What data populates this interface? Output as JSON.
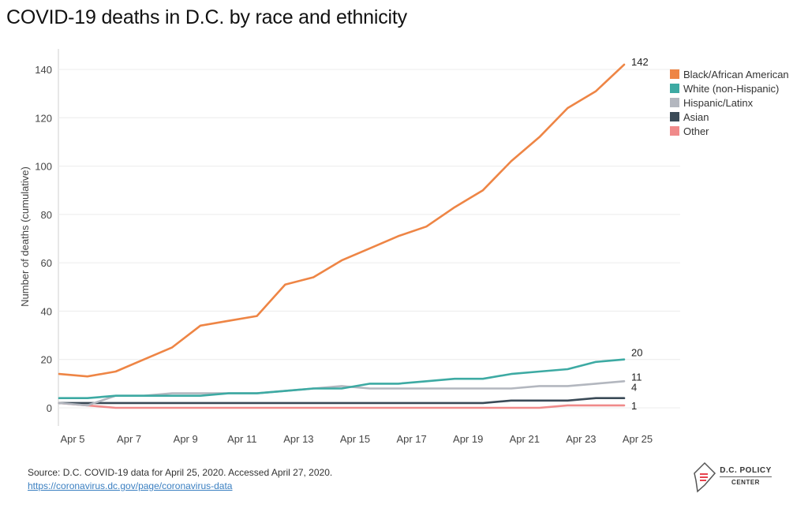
{
  "header": {
    "title": "COVID-19 deaths in D.C. by race and ethnicity"
  },
  "footer": {
    "source": "Source: D.C. COVID-19 data for April 25, 2020. Accessed April 27, 2020.",
    "link": "https://coronavirus.dc.gov/page/coronavirus-data"
  },
  "logo": {
    "name": "D.C. POLICY",
    "sub": "CENTER",
    "icon": "dc-map-icon"
  },
  "chart_data": {
    "type": "line",
    "title": "COVID-19 deaths in D.C. by race and ethnicity",
    "xlabel": "",
    "ylabel": "Number of deaths (cumulative)",
    "ylim": [
      -5,
      145
    ],
    "yticks": [
      0,
      20,
      40,
      60,
      80,
      100,
      120,
      140
    ],
    "grid": true,
    "legend": "top-right",
    "x": [
      "Apr 5",
      "Apr 6",
      "Apr 7",
      "Apr 8",
      "Apr 9",
      "Apr 10",
      "Apr 11",
      "Apr 12",
      "Apr 13",
      "Apr 14",
      "Apr 15",
      "Apr 16",
      "Apr 17",
      "Apr 18",
      "Apr 19",
      "Apr 20",
      "Apr 21",
      "Apr 22",
      "Apr 23",
      "Apr 24",
      "Apr 25"
    ],
    "xtick_labels": [
      "Apr 5",
      "Apr 7",
      "Apr 9",
      "Apr 11",
      "Apr 13",
      "Apr 15",
      "Apr 17",
      "Apr 19",
      "Apr 21",
      "Apr 23",
      "Apr 25"
    ],
    "series": [
      {
        "name": "Black/African American",
        "color": "#ee8545",
        "end_label": "142",
        "values": [
          14,
          13,
          15,
          20,
          25,
          34,
          36,
          38,
          51,
          54,
          61,
          66,
          71,
          75,
          83,
          90,
          102,
          112,
          124,
          131,
          142
        ]
      },
      {
        "name": "White (non-Hispanic)",
        "color": "#3daaa3",
        "end_label": "20",
        "values": [
          4,
          4,
          5,
          5,
          5,
          5,
          6,
          6,
          7,
          8,
          8,
          10,
          10,
          11,
          12,
          12,
          14,
          15,
          16,
          19,
          20
        ]
      },
      {
        "name": "Hispanic/Latinx",
        "color": "#b3b7bf",
        "end_label": "11",
        "values": [
          2,
          1,
          5,
          5,
          6,
          6,
          6,
          6,
          7,
          8,
          9,
          8,
          8,
          8,
          8,
          8,
          8,
          9,
          9,
          10,
          11
        ]
      },
      {
        "name": "Asian",
        "color": "#3a4a57",
        "end_label": "4",
        "values": [
          2,
          2,
          2,
          2,
          2,
          2,
          2,
          2,
          2,
          2,
          2,
          2,
          2,
          2,
          2,
          2,
          3,
          3,
          3,
          4,
          4
        ]
      },
      {
        "name": "Other",
        "color": "#f08a8a",
        "end_label": "1",
        "values": [
          2,
          1,
          0,
          0,
          0,
          0,
          0,
          0,
          0,
          0,
          0,
          0,
          0,
          0,
          0,
          0,
          0,
          0,
          1,
          1,
          1
        ]
      }
    ]
  }
}
